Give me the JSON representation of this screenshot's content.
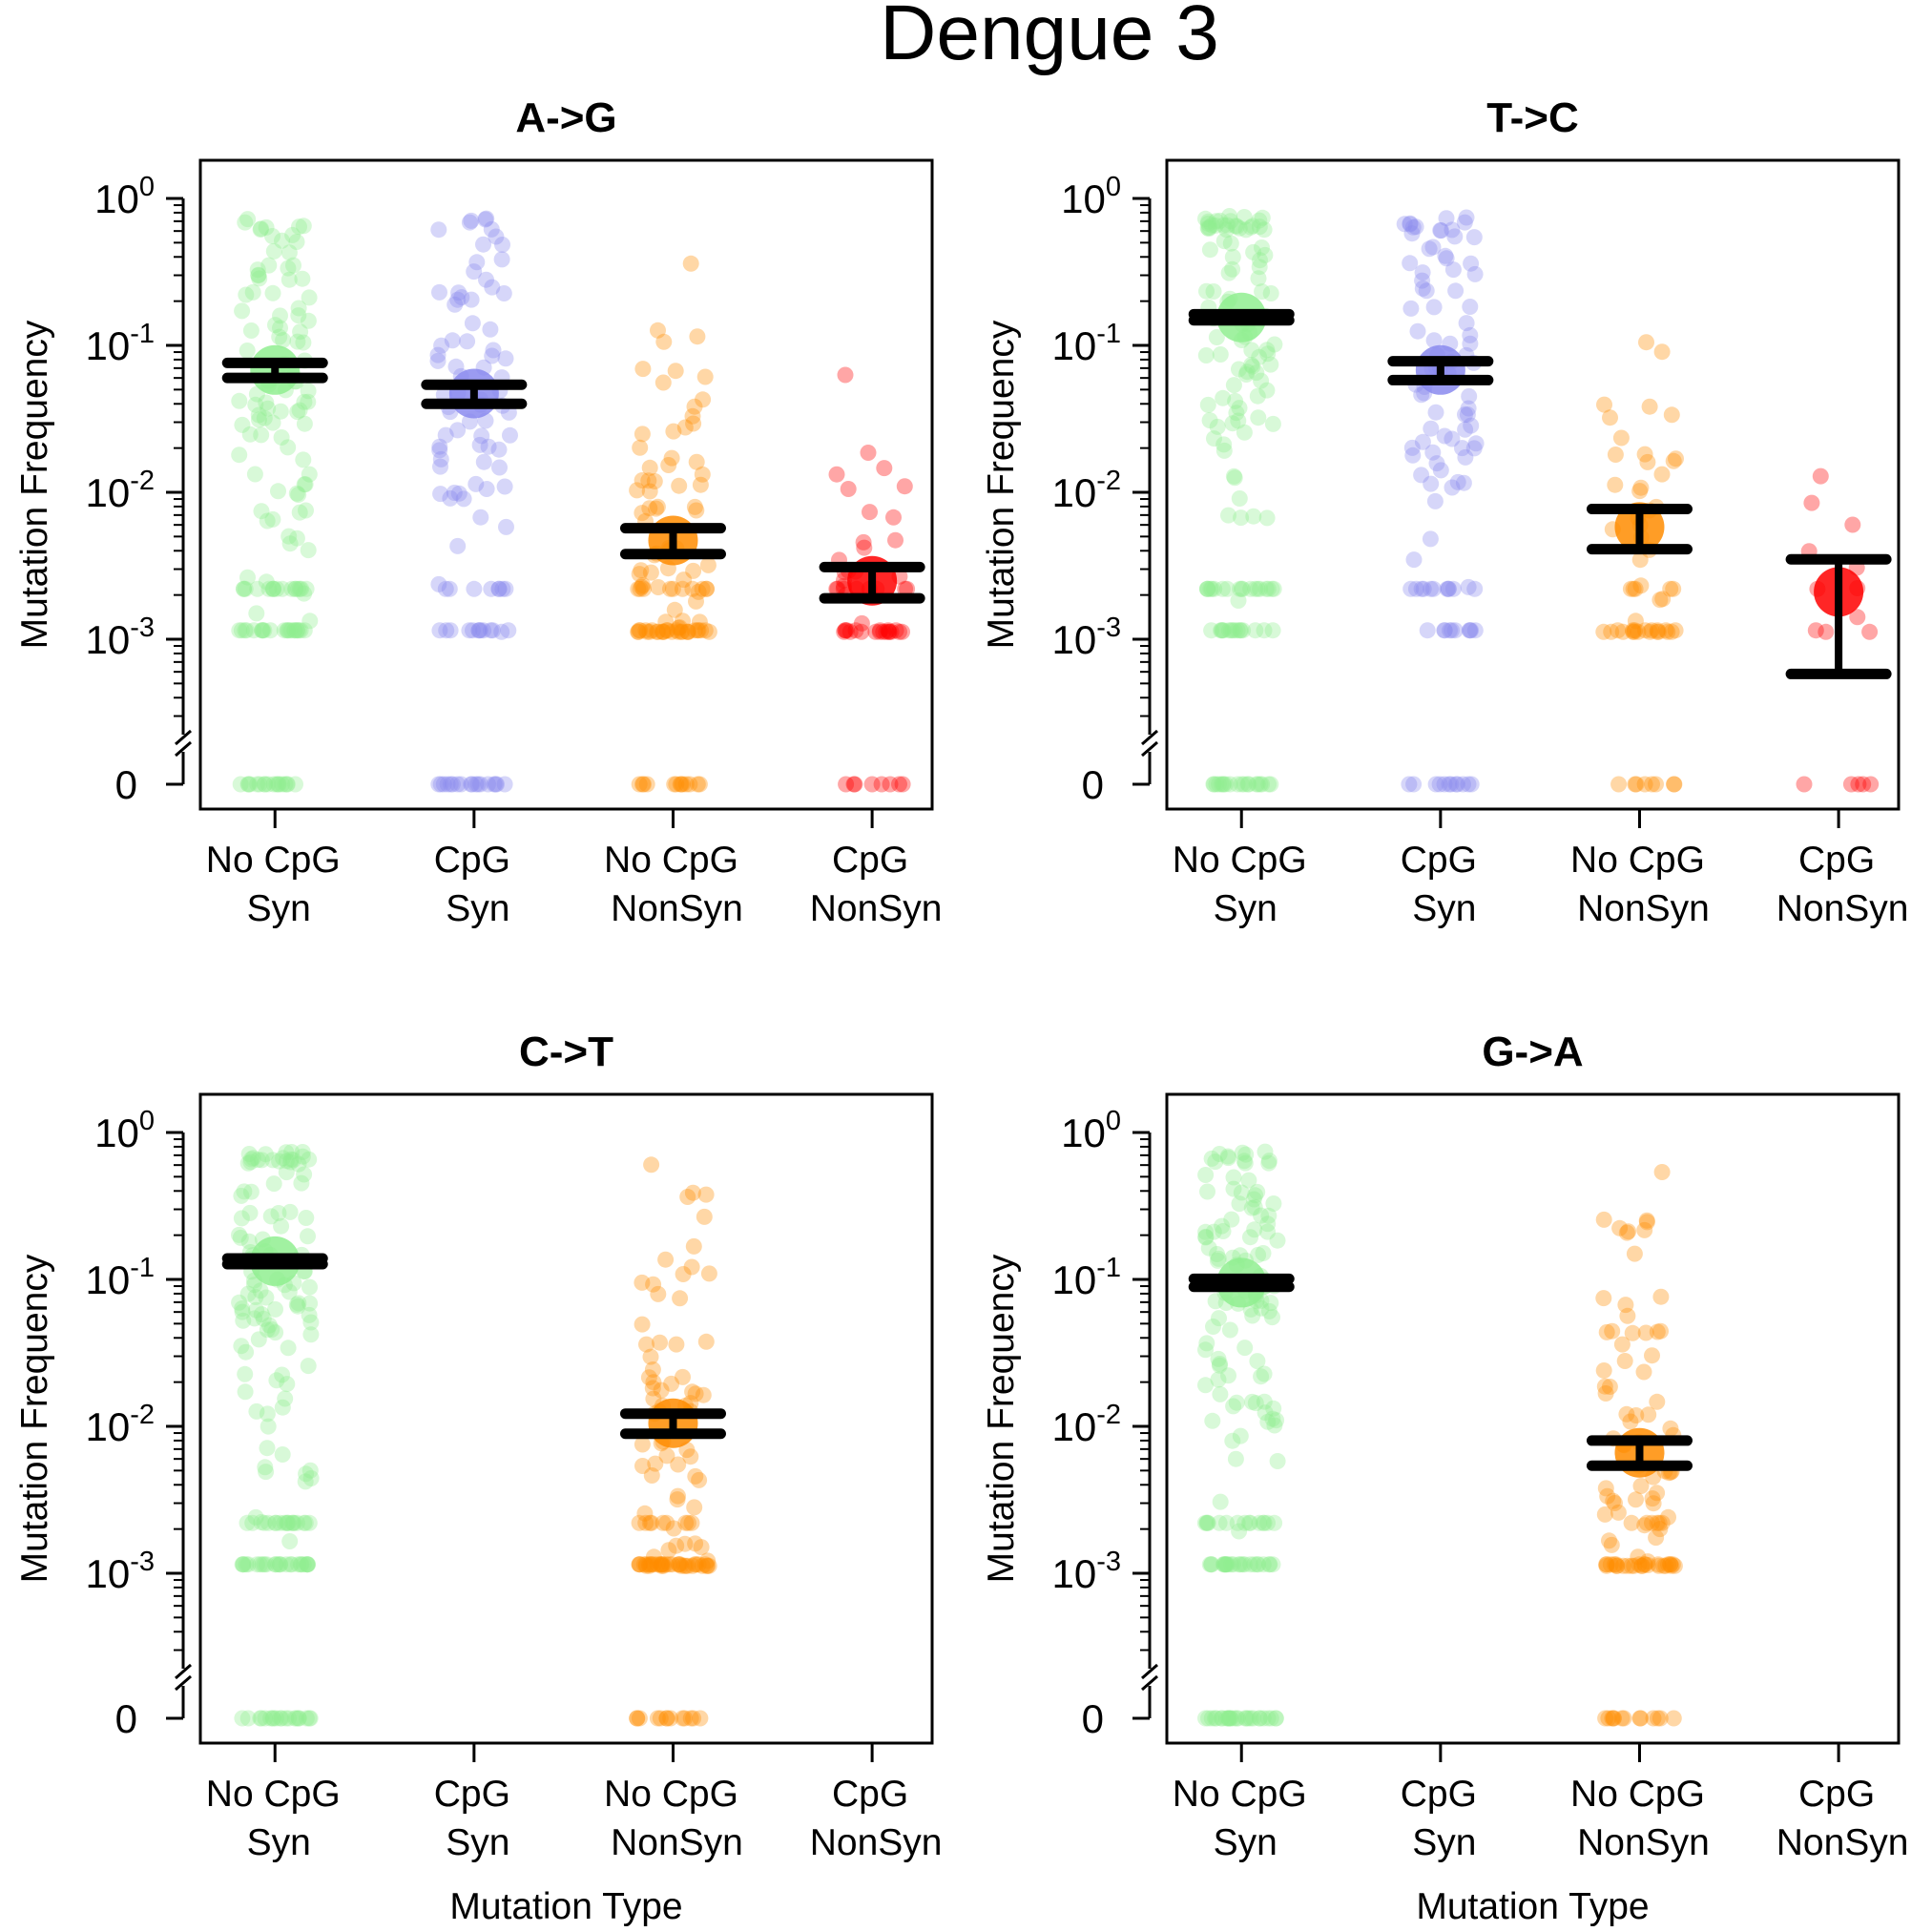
{
  "title": "Dengue 3",
  "ylabel": "Mutation Frequency",
  "xlabel": "Mutation Type",
  "categories": [
    {
      "line1": "No CpG",
      "line2": "Syn"
    },
    {
      "line1": "CpG",
      "line2": "Syn"
    },
    {
      "line1": "No CpG",
      "line2": "NonSyn"
    },
    {
      "line1": "CpG",
      "line2": "NonSyn"
    }
  ],
  "y_ticks": [
    {
      "base": "10",
      "exp": "0"
    },
    {
      "base": "10",
      "exp": "-1"
    },
    {
      "base": "10",
      "exp": "-2"
    },
    {
      "base": "10",
      "exp": "-3"
    }
  ],
  "zero_label": "0",
  "colors": {
    "No CpG Syn": "#90ee90",
    "CpG Syn": "#8a8aee",
    "No CpG NonSyn": "#ff8c00",
    "CpG NonSyn": "#ff0000"
  },
  "chart_data": [
    {
      "type": "scatter",
      "title": "A->G",
      "xlabel": "",
      "ylabel": "Mutation Frequency",
      "y_scale": "log with break at 0",
      "ylim": [
        0.0004,
        1.2
      ],
      "series": [
        {
          "name": "No CpG Syn",
          "mean": 0.068,
          "err_low": 0.06,
          "err_high": 0.076,
          "point_count": 150
        },
        {
          "name": "CpG Syn",
          "mean": 0.047,
          "err_low": 0.04,
          "err_high": 0.054,
          "point_count": 110
        },
        {
          "name": "No CpG NonSyn",
          "mean": 0.0047,
          "err_low": 0.0038,
          "err_high": 0.0057,
          "point_count": 110
        },
        {
          "name": "CpG NonSyn",
          "mean": 0.0025,
          "err_low": 0.0019,
          "err_high": 0.0031,
          "point_count": 55
        }
      ]
    },
    {
      "type": "scatter",
      "title": "T->C",
      "xlabel": "",
      "ylabel": "Mutation Frequency",
      "y_scale": "log with break at 0",
      "ylim": [
        0.0004,
        1.2
      ],
      "series": [
        {
          "name": "No CpG Syn",
          "mean": 0.155,
          "err_low": 0.148,
          "err_high": 0.163,
          "point_count": 150
        },
        {
          "name": "CpG Syn",
          "mean": 0.068,
          "err_low": 0.058,
          "err_high": 0.078,
          "point_count": 110
        },
        {
          "name": "No CpG NonSyn",
          "mean": 0.0058,
          "err_low": 0.0041,
          "err_high": 0.0077,
          "point_count": 60
        },
        {
          "name": "CpG NonSyn",
          "mean": 0.0021,
          "err_low": 0.00058,
          "err_high": 0.0035,
          "point_count": 16
        }
      ]
    },
    {
      "type": "scatter",
      "title": "C->T",
      "xlabel": "Mutation Type",
      "ylabel": "Mutation Frequency",
      "y_scale": "log with break at 0",
      "ylim": [
        0.0004,
        1.2
      ],
      "series": [
        {
          "name": "No CpG Syn",
          "mean": 0.133,
          "err_low": 0.127,
          "err_high": 0.139,
          "point_count": 170
        },
        {
          "name": "No CpG NonSyn",
          "mean": 0.0105,
          "err_low": 0.0089,
          "err_high": 0.0122,
          "point_count": 120
        }
      ]
    },
    {
      "type": "scatter",
      "title": "G->A",
      "xlabel": "Mutation Type",
      "ylabel": "Mutation Frequency",
      "y_scale": "log with break at 0",
      "ylim": [
        0.0004,
        1.2
      ],
      "series": [
        {
          "name": "No CpG Syn",
          "mean": 0.095,
          "err_low": 0.089,
          "err_high": 0.101,
          "point_count": 170
        },
        {
          "name": "No CpG NonSyn",
          "mean": 0.0066,
          "err_low": 0.0054,
          "err_high": 0.008,
          "point_count": 110
        }
      ]
    }
  ]
}
